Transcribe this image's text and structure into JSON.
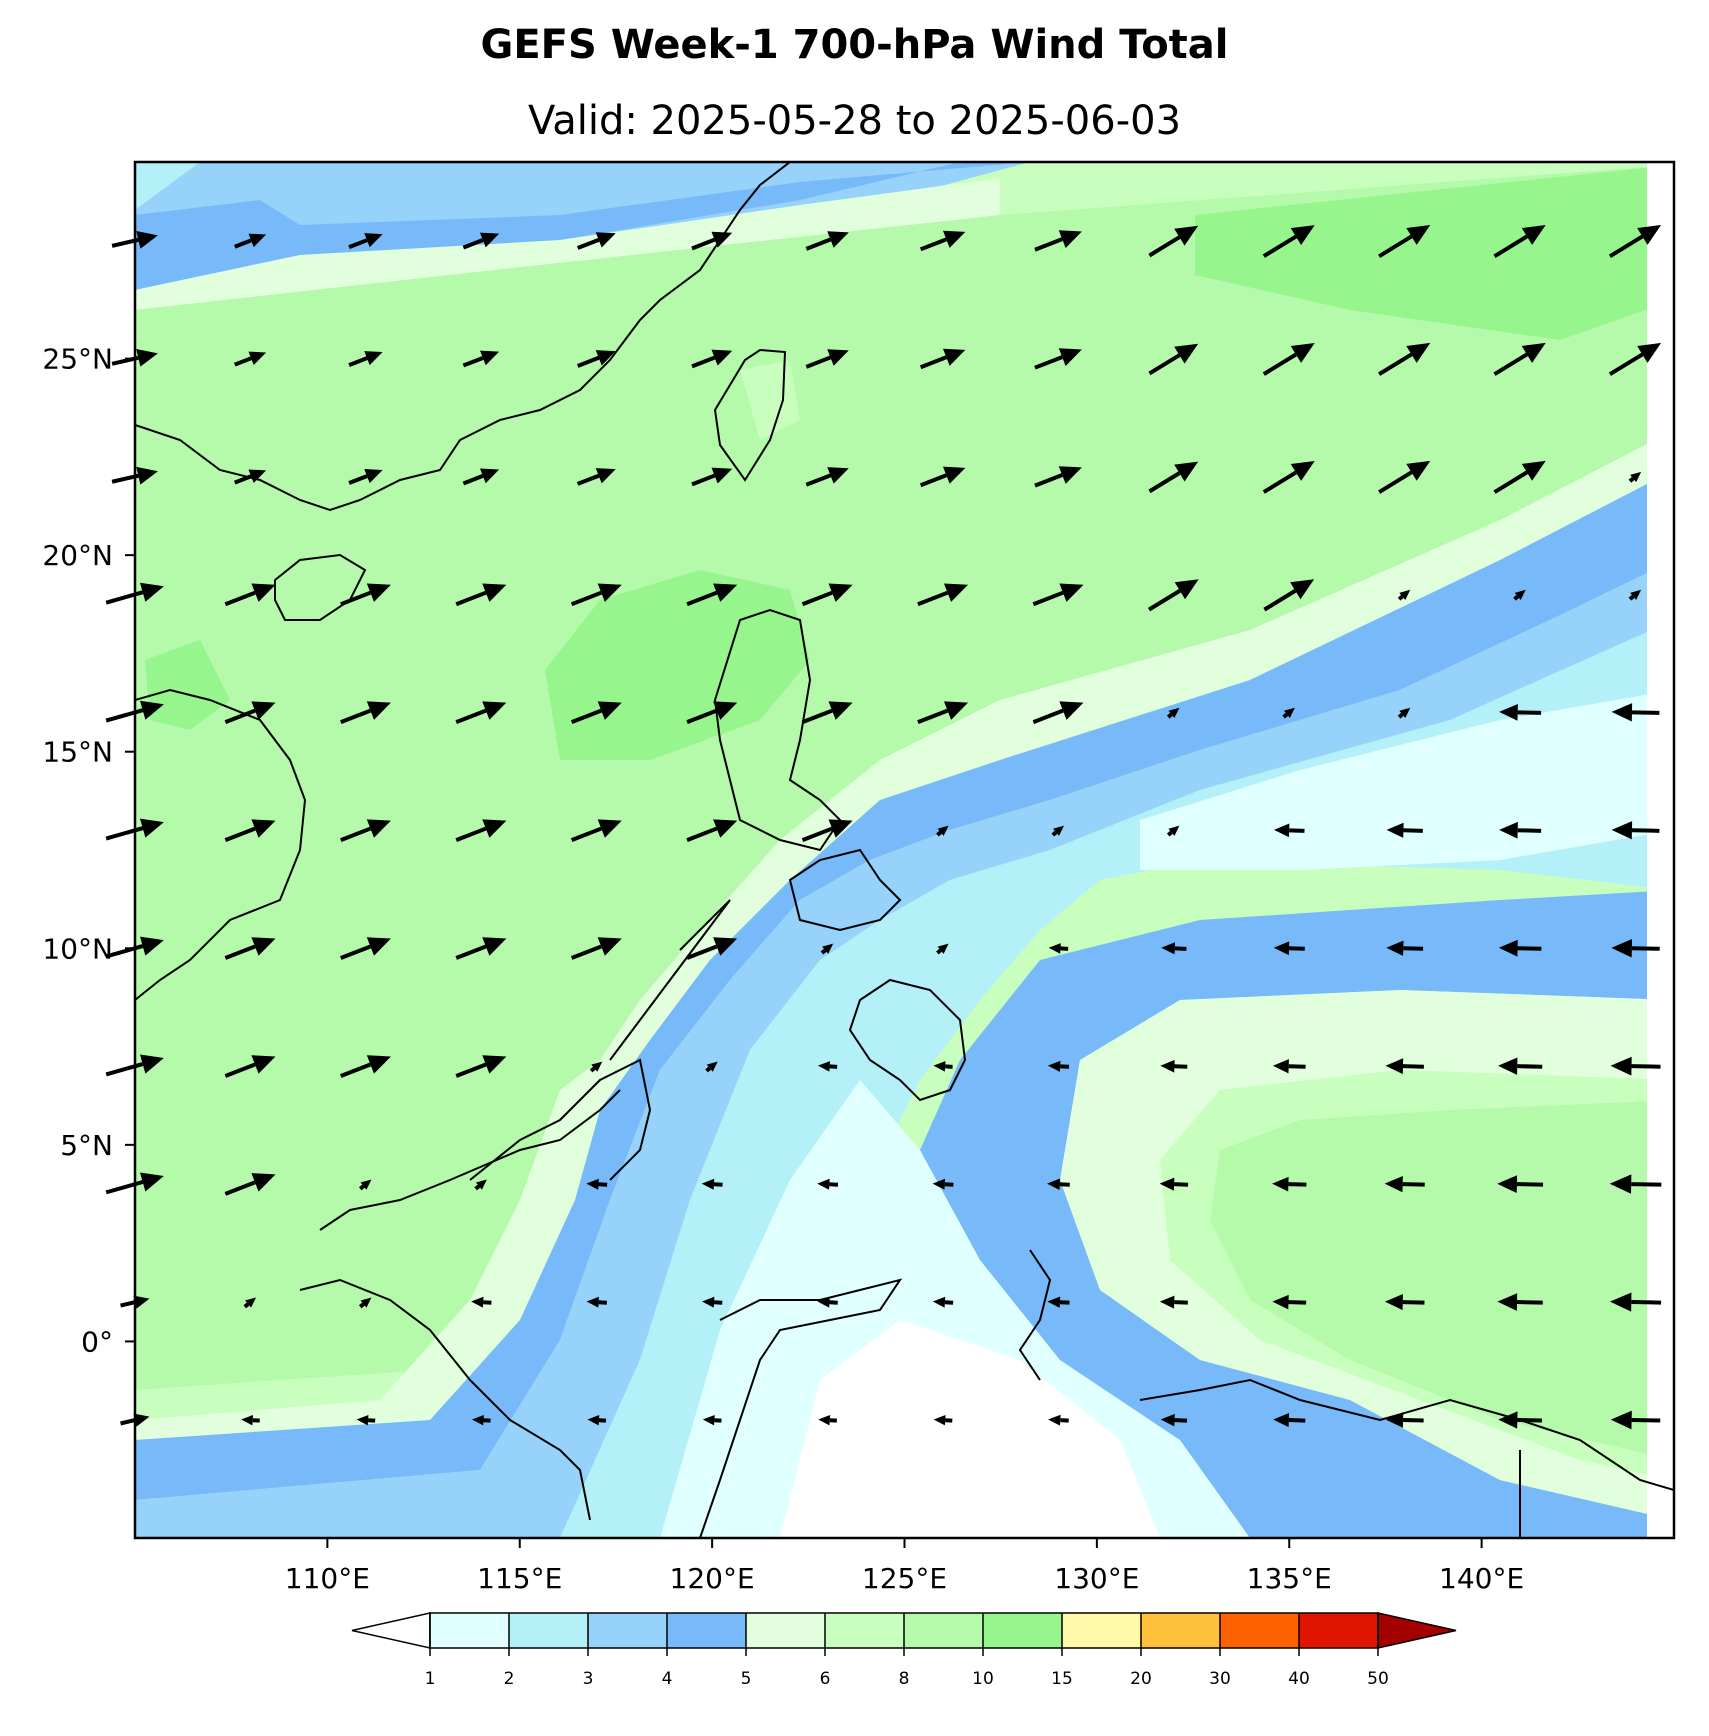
{
  "header": {
    "title": "GEFS Week-1 700-hPa Wind Total",
    "subtitle": "Valid: 2025-05-28 to 2025-06-03"
  },
  "map": {
    "projection": "PlateCarree",
    "lon_range": [
      105.0,
      145.0
    ],
    "lat_range": [
      -5.0,
      30.0
    ],
    "lon_ticks": [
      {
        "value": 110,
        "label": "110°E"
      },
      {
        "value": 115,
        "label": "115°E"
      },
      {
        "value": 120,
        "label": "120°E"
      },
      {
        "value": 125,
        "label": "125°E"
      },
      {
        "value": 130,
        "label": "130°E"
      },
      {
        "value": 135,
        "label": "135°E"
      },
      {
        "value": 140,
        "label": "140°E"
      }
    ],
    "lat_ticks": [
      {
        "value": 25,
        "label": "25°N"
      },
      {
        "value": 20,
        "label": "20°N"
      },
      {
        "value": 15,
        "label": "15°N"
      },
      {
        "value": 10,
        "label": "10°N"
      },
      {
        "value": 5,
        "label": "5°N"
      },
      {
        "value": 0,
        "label": "0°"
      }
    ]
  },
  "colorbar": {
    "levels": [
      "1",
      "2",
      "3",
      "4",
      "5",
      "6",
      "8",
      "10",
      "15",
      "20",
      "30",
      "40",
      "50"
    ],
    "colors": [
      "#e0ffff",
      "#b4f0f8",
      "#96d2fa",
      "#78b9fa",
      "#e1ffdc",
      "#c8ffbe",
      "#b4faaa",
      "#96f58c",
      "#fffaaa",
      "#ffc03c",
      "#ff6000",
      "#e11400",
      "#a50000"
    ],
    "under_color": "#ffffff",
    "over_color": "#a50000"
  },
  "colors": {
    "wind_slow": "#e0ffff",
    "wind_moderate": "#78b9fa",
    "wind_strong": "#96f58c",
    "coastline": "#000000",
    "vectors": "#000000"
  }
}
